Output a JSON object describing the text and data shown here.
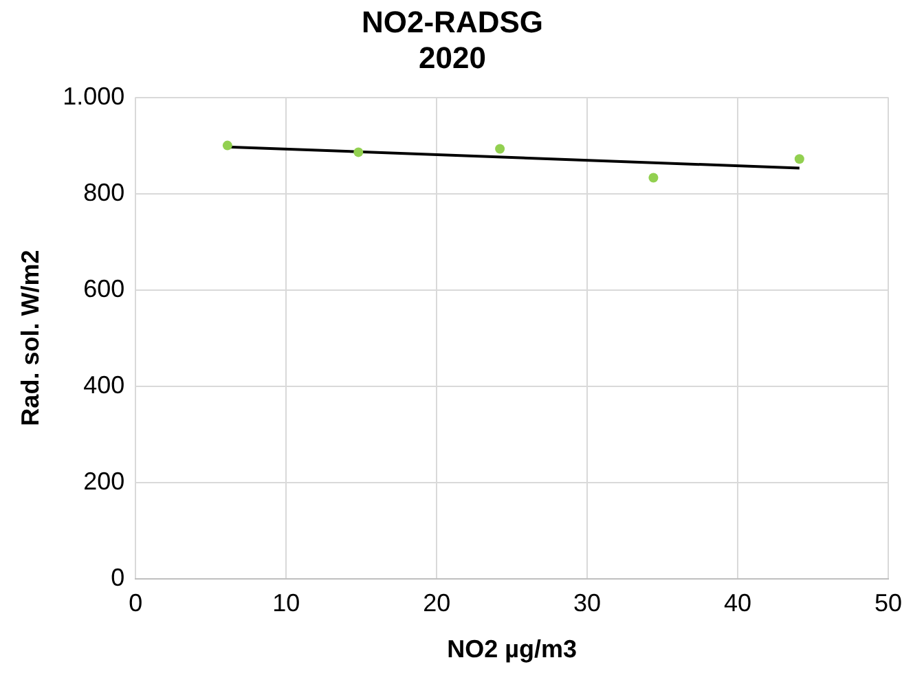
{
  "chart_data": {
    "type": "scatter",
    "title": "NO2-RADSG\n2020",
    "xlabel": "NO2 µg/m3",
    "ylabel": "Rad. sol. W/m2",
    "xlim": [
      0,
      50
    ],
    "xticks": [
      0,
      10,
      20,
      30,
      40,
      50
    ],
    "ylim": [
      0,
      1000
    ],
    "yticks": [
      0,
      200,
      400,
      600,
      800,
      {
        "value": 1000,
        "label": "1.000"
      }
    ],
    "grid": true,
    "legend": false,
    "marker": "circle",
    "series": [
      {
        "color": "#92d050",
        "x": [
          6.1,
          14.8,
          24.2,
          34.4,
          44.1
        ],
        "values": [
          900,
          886,
          893,
          833,
          872
        ]
      },
      {
        "type": "line",
        "color": "#000000",
        "marker": "none",
        "x": [
          6.1,
          44.1
        ],
        "values": [
          897,
          853
        ]
      }
    ]
  }
}
